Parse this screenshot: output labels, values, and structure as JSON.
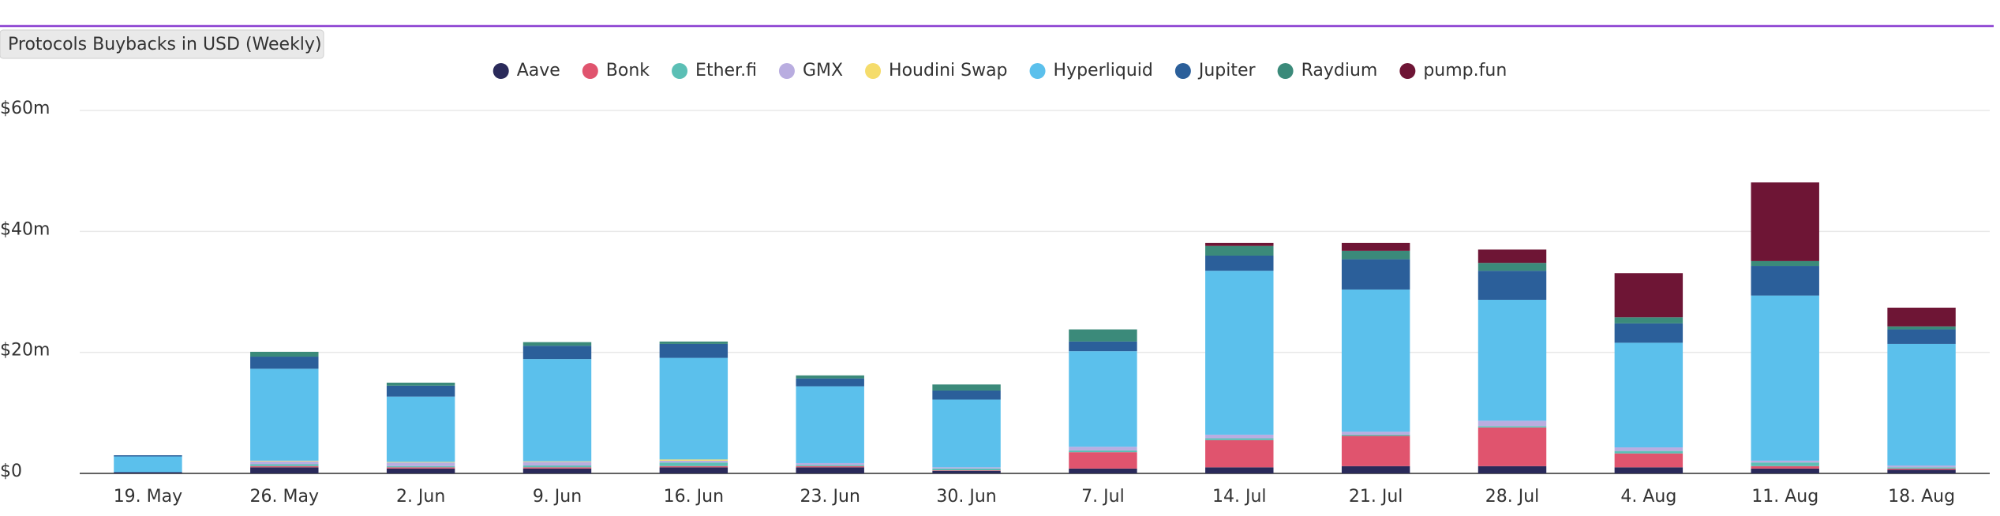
{
  "chart_data": {
    "type": "stacked_bar",
    "badge": "Protocols Buybacks in USD (Weekly)",
    "categories": [
      "19. May",
      "26. May",
      "2. Jun",
      "9. Jun",
      "16. Jun",
      "23. Jun",
      "30. Jun",
      "7. Jul",
      "14. Jul",
      "21. Jul",
      "28. Jul",
      "4. Aug",
      "11. Aug",
      "18. Aug"
    ],
    "series": [
      {
        "name": "Aave",
        "color": "#2a2a5a",
        "values": [
          0.2,
          1.0,
          0.8,
          0.8,
          1.0,
          1.0,
          0.4,
          0.8,
          1.0,
          1.2,
          1.2,
          1.0,
          0.8,
          0.6
        ]
      },
      {
        "name": "Bonk",
        "color": "#e0546e",
        "values": [
          0,
          0.2,
          0.2,
          0.2,
          0.2,
          0.2,
          0.1,
          2.7,
          4.5,
          5.0,
          6.4,
          2.3,
          0.4,
          0.2
        ]
      },
      {
        "name": "Ether.fi",
        "color": "#5bbfb5",
        "values": [
          0,
          0.3,
          0.2,
          0.3,
          0.6,
          0.2,
          0.3,
          0.3,
          0.3,
          0.2,
          0.2,
          0.4,
          0.6,
          0.2
        ]
      },
      {
        "name": "GMX",
        "color": "#b9ade0",
        "values": [
          0,
          0.5,
          0.6,
          0.6,
          0.3,
          0.3,
          0.2,
          0.6,
          0.6,
          0.5,
          0.9,
          0.6,
          0.3,
          0.3
        ]
      },
      {
        "name": "Houdini Swap",
        "color": "#f5dc6b",
        "values": [
          0,
          0.1,
          0.1,
          0.1,
          0.2,
          0,
          0,
          0,
          0,
          0,
          0,
          0,
          0,
          0
        ]
      },
      {
        "name": "Hyperliquid",
        "color": "#5bc0ec",
        "values": [
          2.6,
          15.2,
          10.8,
          16.9,
          16.8,
          12.7,
          11.2,
          15.8,
          27.1,
          23.5,
          20.0,
          17.3,
          27.3,
          20.1
        ]
      },
      {
        "name": "Jupiter",
        "color": "#2b5f9a",
        "values": [
          0.2,
          2.0,
          1.8,
          2.2,
          2.3,
          1.3,
          1.5,
          1.6,
          2.5,
          5.0,
          4.8,
          3.2,
          4.9,
          2.4
        ]
      },
      {
        "name": "Raydium",
        "color": "#3b8a7a",
        "values": [
          0,
          0.8,
          0.5,
          0.6,
          0.4,
          0.5,
          1.0,
          2.0,
          1.6,
          1.4,
          1.3,
          1.0,
          0.8,
          0.5
        ]
      },
      {
        "name": "pump.fun",
        "color": "#6e1535",
        "values": [
          0,
          0,
          0,
          0,
          0,
          0,
          0,
          0,
          0.5,
          1.3,
          2.2,
          7.3,
          13.0,
          3.1
        ]
      }
    ],
    "ylim": [
      0,
      60
    ],
    "yticks": [
      {
        "value": 0,
        "label": "$0"
      },
      {
        "value": 20,
        "label": "$20m"
      },
      {
        "value": 40,
        "label": "$40m"
      },
      {
        "value": 60,
        "label": "$60m"
      }
    ],
    "grid": true
  }
}
